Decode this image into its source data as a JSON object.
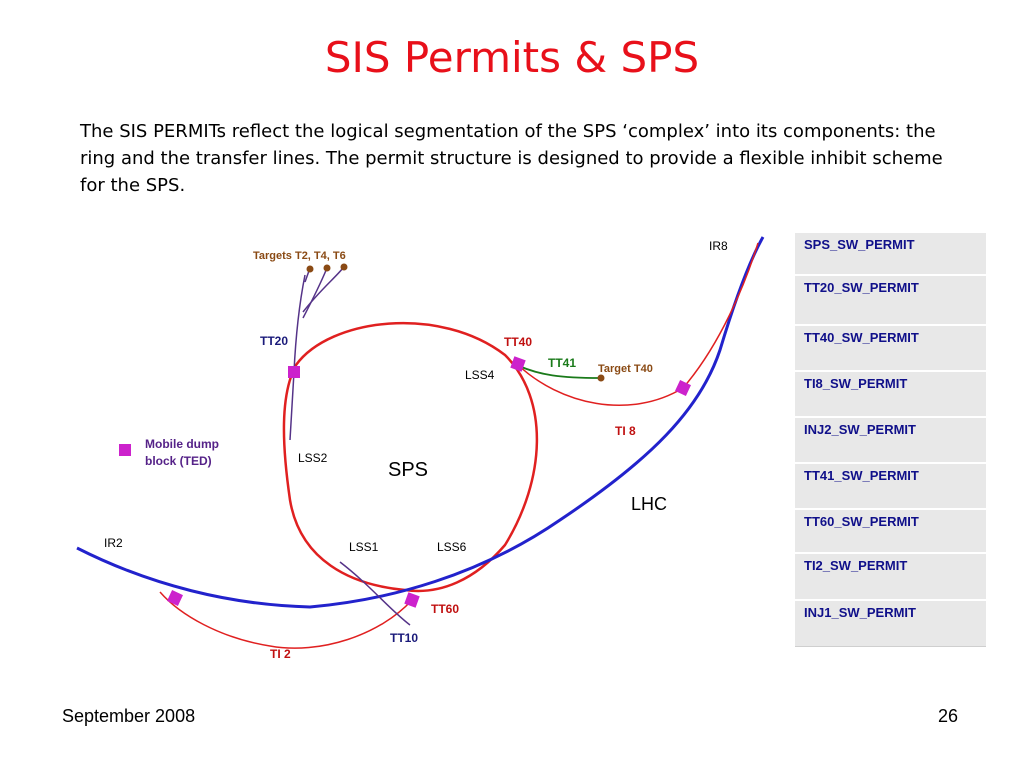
{
  "slide": {
    "title": "SIS Permits & SPS",
    "intro": "The SIS PERMITs reflect the logical segmentation of the SPS ‘complex’ into its components: the ring and the transfer lines. The permit structure is designed to provide a flexible inhibit scheme for the SPS.",
    "footer_date": "September 2008",
    "page_number": "26"
  },
  "diagram": {
    "labels": {
      "targets": "Targets T2, T4, T6",
      "tt20": "TT20",
      "tt40": "TT40",
      "tt41": "TT41",
      "target_t40": "Target T40",
      "ir8": "IR8",
      "lss4": "LSS4",
      "lss2": "LSS2",
      "sps": "SPS",
      "ti8": "TI 8",
      "lhc": "LHC",
      "mobile_dump_line1": "Mobile dump",
      "mobile_dump_line2": "block (TED)",
      "ir2": "IR2",
      "lss1": "LSS1",
      "lss6": "LSS6",
      "tt60": "TT60",
      "ti2": "TI 2",
      "tt10": "TT10"
    },
    "colors": {
      "ring": "#e02020",
      "lhc": "#2222cc",
      "lines_purple": "#553388",
      "tt41": "#1a7a1a",
      "marker": "#cc22cc",
      "label_brown": "#8a4a14",
      "label_navy": "#1a1a7a"
    }
  },
  "permits": [
    "SPS_SW_PERMIT",
    "TT20_SW_PERMIT",
    "TT40_SW_PERMIT",
    "TI8_SW_PERMIT",
    "INJ2_SW_PERMIT",
    "TT41_SW_PERMIT",
    "TT60_SW_PERMIT",
    "TI2_SW_PERMIT",
    "INJ1_SW_PERMIT"
  ]
}
